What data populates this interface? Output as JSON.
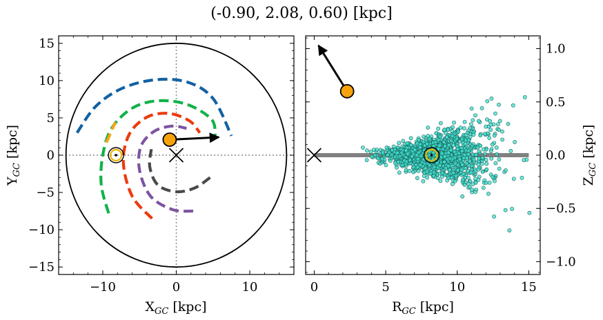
{
  "figure": {
    "title": "(-0.90, 2.08, 0.60) [kpc]"
  },
  "chart_data": [
    {
      "type": "scatter",
      "panel": "left",
      "xlabel": "X_GC [kpc]",
      "ylabel": "Y_GC [kpc]",
      "xlim": [
        -16,
        16
      ],
      "ylim": [
        -16,
        16
      ],
      "xticks": [
        -10,
        0,
        10
      ],
      "xtick_labels": [
        "−10",
        "0",
        "10"
      ],
      "yticks": [
        -15,
        -10,
        -5,
        0,
        5,
        10,
        15
      ],
      "ytick_labels": [
        "−15",
        "−10",
        "−5",
        "0",
        "5",
        "10",
        "15"
      ],
      "boundary_circle_radius": 15,
      "reference_lines": {
        "x": 0,
        "y": 0,
        "style": "dotted"
      },
      "galactic_center_marker": {
        "x": 0,
        "y": 0,
        "marker": "x"
      },
      "sun": {
        "x": -8.2,
        "y": 0.0,
        "marker": "circled-dot",
        "color": "#e8b400"
      },
      "object": {
        "x": -0.9,
        "y": 2.08,
        "color": "#f5a20b"
      },
      "velocity_arrow": {
        "x0": -0.9,
        "y0": 2.08,
        "x1": 5.8,
        "y1": 2.4
      },
      "spiral_arms": [
        {
          "color": "#1361a3",
          "points": [
            [
              -13.5,
              3.0
            ],
            [
              -11,
              6.5
            ],
            [
              -7.5,
              8.9
            ],
            [
              -3,
              10.1
            ],
            [
              1.5,
              9.8
            ],
            [
              5,
              7.6
            ],
            [
              7.5,
              2.6
            ]
          ]
        },
        {
          "color": "#12b24a",
          "points": [
            [
              -9.2,
              -7.8
            ],
            [
              -10.2,
              -4
            ],
            [
              -10,
              0
            ],
            [
              -8.8,
              3.6
            ],
            [
              -6,
              6.3
            ],
            [
              -2.5,
              7.3
            ],
            [
              1.5,
              6.8
            ],
            [
              4.8,
              4.8
            ],
            [
              5.3,
              2.6
            ]
          ]
        },
        {
          "color": "#f7a613",
          "points": [
            [
              -9.5,
              1.7
            ],
            [
              -8.3,
              4.4
            ]
          ]
        },
        {
          "color": "#ec3a0e",
          "points": [
            [
              -3.3,
              -8.5
            ],
            [
              -6,
              -5.5
            ],
            [
              -7.2,
              -1
            ],
            [
              -6.4,
              2.8
            ],
            [
              -4,
              5.1
            ],
            [
              -1,
              5.6
            ],
            [
              1.8,
              4.6
            ],
            [
              3.2,
              3.0
            ]
          ]
        },
        {
          "color": "#7d54a2",
          "points": [
            [
              2.3,
              -7.5
            ],
            [
              -0.5,
              -7.3
            ],
            [
              -3.5,
              -5.5
            ],
            [
              -5.0,
              -2
            ],
            [
              -4.8,
              1.2
            ],
            [
              -3.0,
              3.2
            ],
            [
              -0.6,
              3.9
            ],
            [
              1.4,
              3.6
            ]
          ]
        },
        {
          "color": "#4a4a4a",
          "points": [
            [
              4.6,
              -3.0
            ],
            [
              2.5,
              -4.4
            ],
            [
              0,
              -4.9
            ],
            [
              -2.5,
              -4.0
            ],
            [
              -3.6,
              -1.6
            ],
            [
              -3.4,
              0.8
            ]
          ]
        }
      ]
    },
    {
      "type": "scatter",
      "panel": "right",
      "xlabel": "R_GC [kpc]",
      "ylabel": "Z_GC [kpc]",
      "xlim": [
        -0.6,
        15.8
      ],
      "ylim": [
        -1.12,
        1.12
      ],
      "xticks": [
        0,
        5,
        10,
        15
      ],
      "xtick_labels": [
        "0",
        "5",
        "10",
        "15"
      ],
      "yticks": [
        -1.0,
        -0.5,
        0.0,
        0.5,
        1.0
      ],
      "ytick_labels": [
        "−1.0",
        "−0.5",
        "0.0",
        "0.5",
        "1.0"
      ],
      "y_axis_position": "right",
      "disk_line": {
        "x0": 0,
        "x1": 15,
        "y": 0,
        "color": "#808080"
      },
      "galactic_center_marker": {
        "x": 0,
        "y": 0,
        "marker": "x"
      },
      "sun": {
        "x": 8.2,
        "y": 0.0,
        "color": "#e8b400"
      },
      "object": {
        "x": 2.3,
        "y": 0.6,
        "color": "#f5a20b"
      },
      "velocity_arrow": {
        "x0": 2.3,
        "y0": 0.6,
        "x1": 0.3,
        "y1": 1.03
      },
      "stars": {
        "color": "#40e0d0",
        "count": 1500,
        "r_peak": 8.2,
        "r_spread": 1.6,
        "z_spread_near_center": 0.04,
        "z_spread_at_edge": 0.45
      }
    }
  ]
}
